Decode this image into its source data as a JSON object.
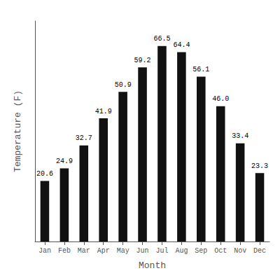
{
  "chart_data": {
    "type": "bar",
    "categories": [
      "Jan",
      "Feb",
      "Mar",
      "Apr",
      "May",
      "Jun",
      "Jul",
      "Aug",
      "Sep",
      "Oct",
      "Nov",
      "Dec"
    ],
    "values": [
      20.6,
      24.9,
      32.7,
      41.9,
      50.9,
      59.2,
      66.5,
      64.4,
      56.1,
      46.0,
      33.4,
      23.3
    ],
    "value_labels": [
      "20.6",
      "24.9",
      "32.7",
      "41.9",
      "50.9",
      "59.2",
      "66.5",
      "64.4",
      "56.1",
      "46.0",
      "33.4",
      "23.3"
    ],
    "data_labels": true,
    "color": "#111111",
    "xlabel": "Month",
    "ylabel": "Temperature (F)",
    "ylim": [
      0,
      75
    ],
    "tick_labels": "x",
    "grid": false
  }
}
